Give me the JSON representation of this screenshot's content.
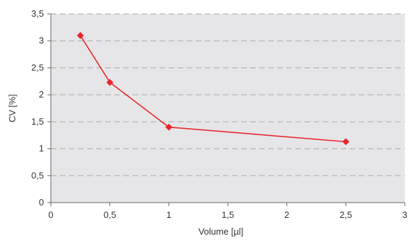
{
  "chart_data": {
    "type": "line",
    "title": "",
    "xlabel": "Volume [µl]",
    "ylabel": "CV [%]",
    "xlim": [
      0,
      3
    ],
    "ylim": [
      0,
      3.5
    ],
    "x_ticks": [
      0,
      0.5,
      1,
      1.5,
      2,
      2.5,
      3
    ],
    "x_tick_labels": [
      "0",
      "0,5",
      "1",
      "1,5",
      "2",
      "2,5",
      "3"
    ],
    "y_ticks": [
      0,
      0.5,
      1,
      1.5,
      2,
      2.5,
      3,
      3.5
    ],
    "y_tick_labels": [
      "0",
      "0,5",
      "1",
      "1,5",
      "2",
      "2,5",
      "3",
      "3,5"
    ],
    "grid": "horizontal-dashed",
    "legend": "none",
    "series": [
      {
        "x": [
          0.25,
          0.5,
          1,
          2.5
        ],
        "y": [
          3.1,
          2.23,
          1.4,
          1.13
        ],
        "color": "#e8262a",
        "marker": "diamond"
      }
    ],
    "colors": {
      "plot_background": "#e6e6e8",
      "grid": "#b5b5b5",
      "axis": "#666666",
      "text": "#333333"
    }
  }
}
